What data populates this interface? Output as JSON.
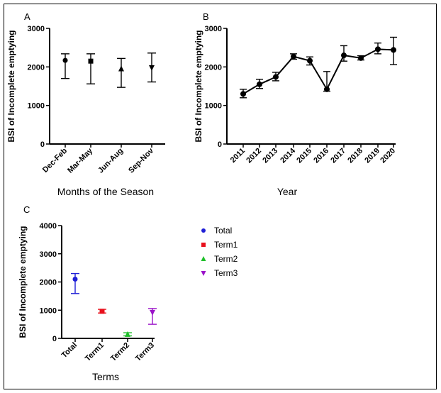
{
  "chart_data": [
    {
      "panel": "A",
      "type": "scatter",
      "categories": [
        "Dec-Feb",
        "Mar-May",
        "Jun-Aug",
        "Sep-Nov"
      ],
      "values": [
        2170,
        2150,
        1950,
        1980
      ],
      "err_low": [
        1700,
        1560,
        1470,
        1610
      ],
      "err_high": [
        2340,
        2340,
        2220,
        2360
      ],
      "markers": [
        "circle",
        "square",
        "triangle-up",
        "triangle-down"
      ],
      "xlabel": "Months of the Season",
      "ylabel": "BSI of Incomplete emptying",
      "ylim": [
        0,
        3000
      ],
      "yticks": [
        0,
        1000,
        2000,
        3000
      ],
      "grid": false
    },
    {
      "panel": "B",
      "type": "line",
      "categories": [
        "2011",
        "2012",
        "2013",
        "2014",
        "2015",
        "2016",
        "2017",
        "2018",
        "2019",
        "2020"
      ],
      "values": [
        1300,
        1550,
        1740,
        2270,
        2160,
        1420,
        2300,
        2230,
        2460,
        2440
      ],
      "err_low": [
        1200,
        1440,
        1640,
        2200,
        2050,
        1370,
        2150,
        2180,
        2340,
        2060
      ],
      "err_high": [
        1420,
        1680,
        1860,
        2340,
        2260,
        1880,
        2550,
        2290,
        2620,
        2770
      ],
      "xlabel": "Year",
      "ylabel": "BSI of Incomplete emptying",
      "ylim": [
        0,
        3000
      ],
      "yticks": [
        0,
        1000,
        2000,
        3000
      ],
      "grid": false
    },
    {
      "panel": "C",
      "type": "scatter",
      "categories": [
        "Total",
        "Term1",
        "Term2",
        "Term3"
      ],
      "values": [
        2100,
        960,
        140,
        920
      ],
      "err_low": [
        1590,
        900,
        90,
        500
      ],
      "err_high": [
        2300,
        1030,
        200,
        1060
      ],
      "colors": [
        "#1f1fd6",
        "#e8101c",
        "#1fbf2a",
        "#9b14c9"
      ],
      "markers": [
        "circle",
        "square",
        "triangle-up",
        "triangle-down"
      ],
      "xlabel": "Terms",
      "ylabel": "BSI of Incomplete emptying",
      "ylim": [
        0,
        4000
      ],
      "yticks": [
        0,
        1000,
        2000,
        3000,
        4000
      ],
      "legend": [
        "Total",
        "Term1",
        "Term2",
        "Term3"
      ],
      "legend_position": "right",
      "grid": false
    }
  ]
}
